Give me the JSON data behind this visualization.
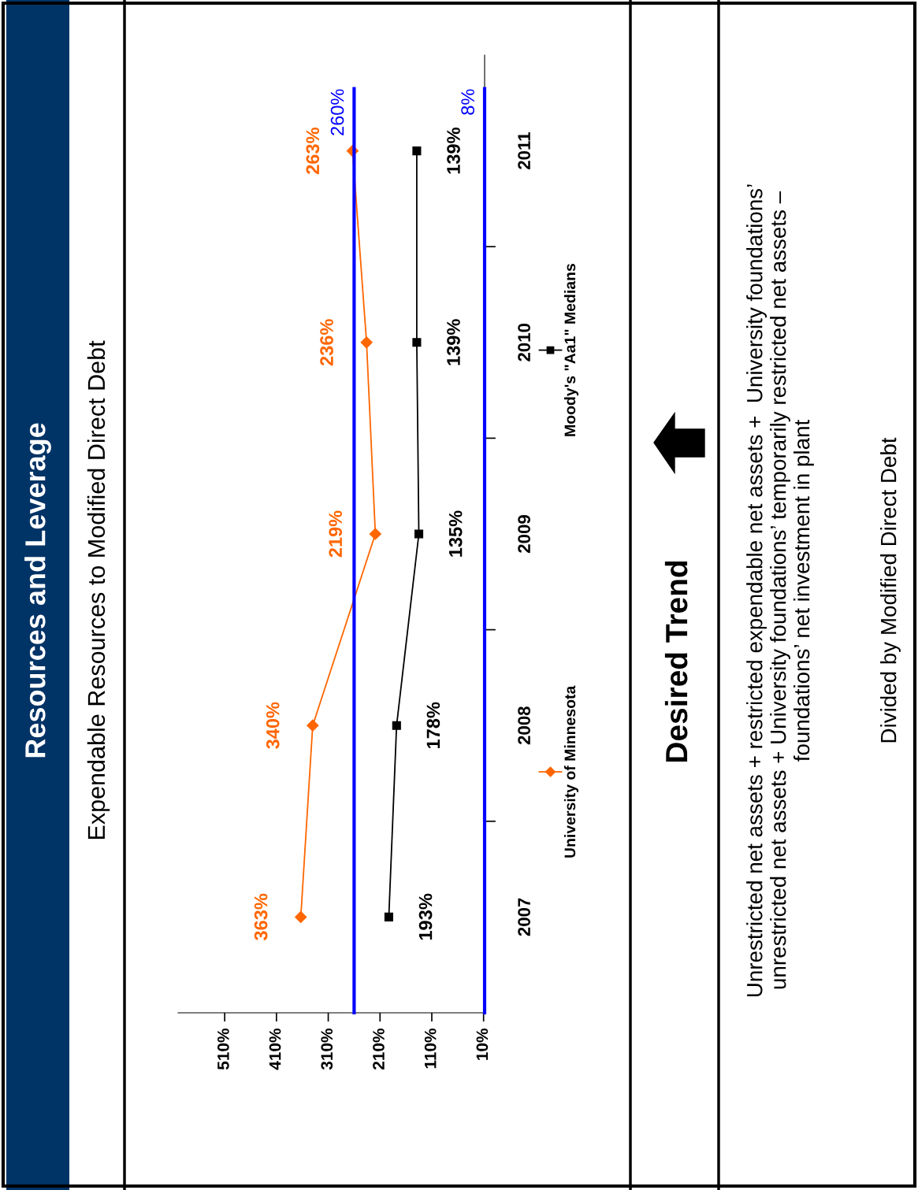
{
  "chart_data": {
    "type": "line",
    "orientation": "horizontal",
    "title": "Resources and Leverage",
    "subtitle": "Expendable Resources to Modified Direct Debt",
    "categories": [
      "2011",
      "2010",
      "2009",
      "2008",
      "2007"
    ],
    "series": [
      {
        "name": "University of Minnesota",
        "color": "#ff6600",
        "marker": "diamond",
        "values": [
          263,
          236,
          219,
          340,
          363
        ]
      },
      {
        "name": "Moody's \"Aa1\" Medians",
        "color": "#000000",
        "marker": "square",
        "values": [
          139,
          139,
          135,
          178,
          193
        ]
      }
    ],
    "xlim": [
      600,
      8
    ],
    "xticks": [
      {
        "value": 10,
        "label": "10%"
      },
      {
        "value": 110,
        "label": "110%"
      },
      {
        "value": 210,
        "label": "210%"
      },
      {
        "value": 310,
        "label": "310%"
      },
      {
        "value": 410,
        "label": "410%"
      },
      {
        "value": 510,
        "label": "510%"
      }
    ],
    "value_labels": [
      [
        "263%",
        "236%",
        "219%",
        "340%",
        "363%"
      ],
      [
        "139%",
        "139%",
        "135%",
        "178%",
        "193%"
      ]
    ],
    "ref_lines": [
      {
        "axis": "x",
        "value": 260,
        "label": "260%",
        "color": "#0000ff"
      },
      {
        "axis": "x",
        "value": 8,
        "label": "8%",
        "color": "#0000ff"
      }
    ],
    "annotations": [
      "Desired Trend",
      "Unrestricted net assets + restricted expendable net assets +  University foundations’\nunrestricted net assets + University foundations’ temporarily restricted net assets –\nfoundations’ net investment in plant",
      "Divided by Modified Direct Debt"
    ],
    "legend": "right",
    "grid": false,
    "line_style": "solid"
  }
}
